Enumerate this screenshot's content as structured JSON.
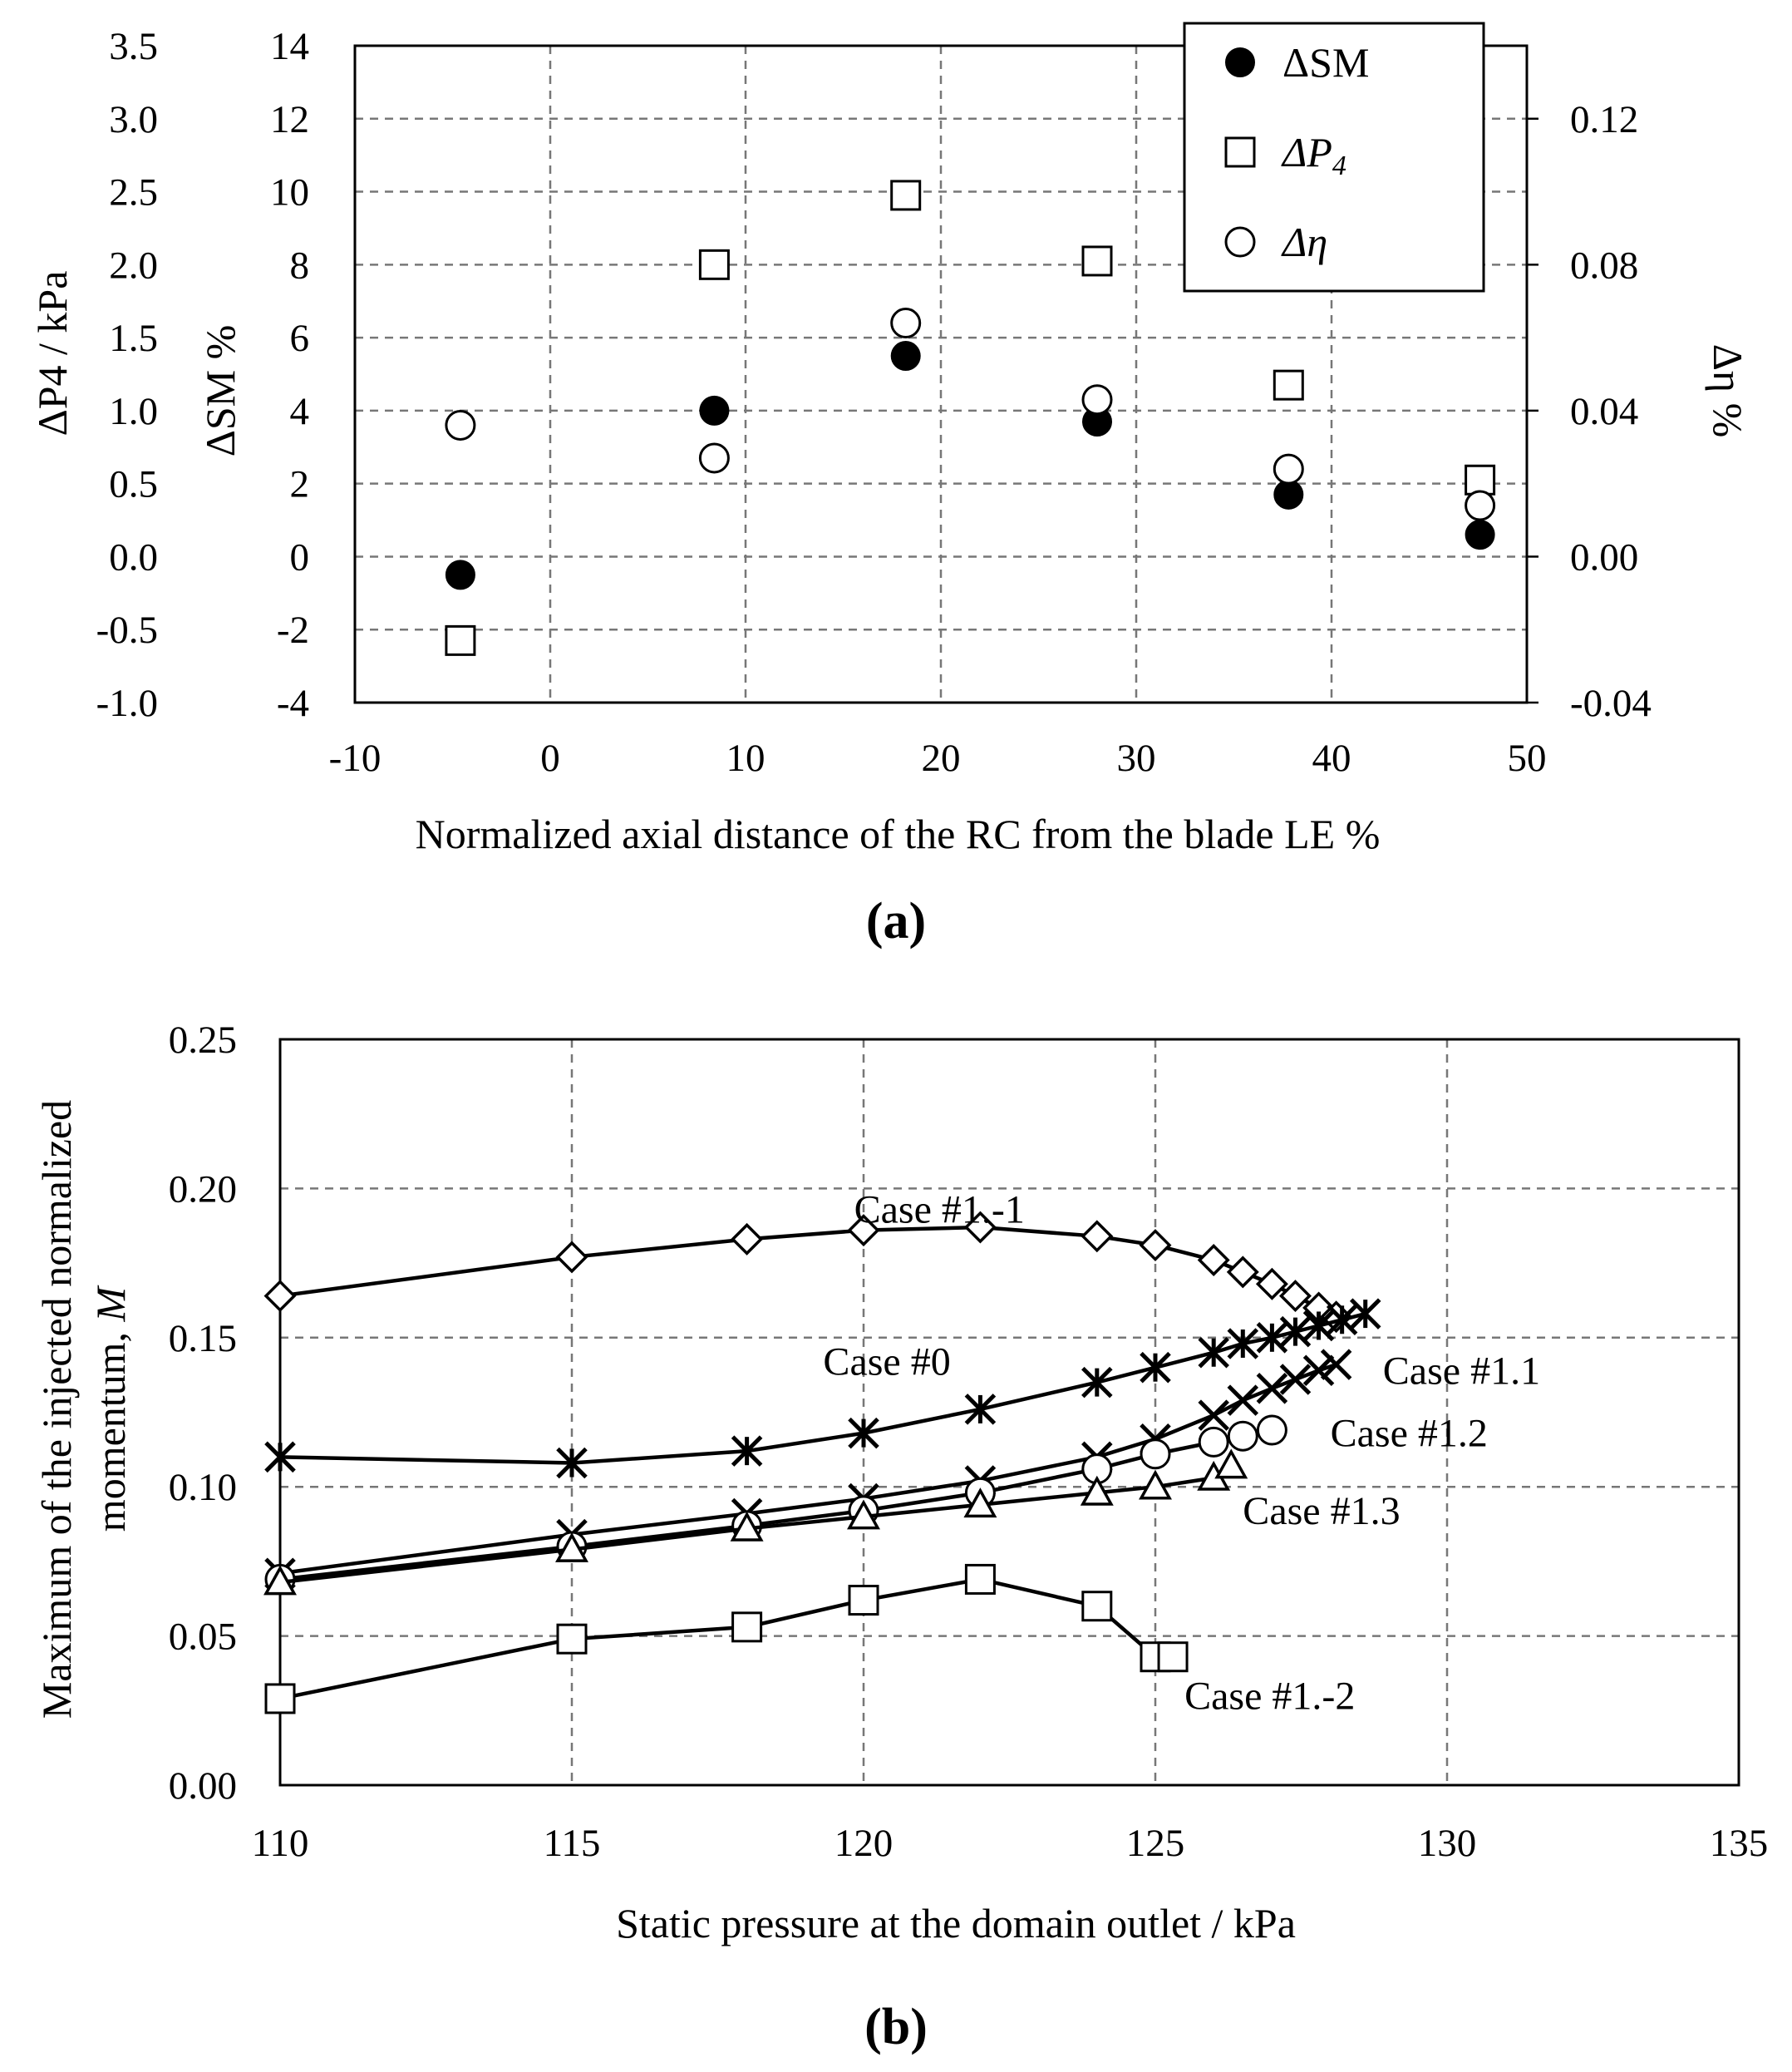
{
  "chart_data": [
    {
      "type": "scatter",
      "panel_label": "(a)",
      "xlabel": "Normalized axial distance of the RC from the blade LE   %",
      "ylabel_left_outer": "ΔP4   /  kPa",
      "ylabel_left_inner": "ΔSM   %",
      "ylabel_right": "Δη   %",
      "xlim": [
        -10,
        50
      ],
      "x_ticks": [
        "-10",
        "0",
        "10",
        "20",
        "30",
        "40",
        "50"
      ],
      "ylim_sm": [
        -4,
        14
      ],
      "y_ticks_sm": [
        "-4",
        "-2",
        "0",
        "2",
        "4",
        "6",
        "8",
        "10",
        "12",
        "14"
      ],
      "ylim_p4": [
        -1.0,
        3.5
      ],
      "y_ticks_p4": [
        "-1.0",
        "-0.5",
        "0.0",
        "0.5",
        "1.0",
        "1.5",
        "2.0",
        "2.5",
        "3.0",
        "3.5"
      ],
      "ylim_eta": [
        -0.04,
        0.14
      ],
      "y_ticks_eta": [
        "-0.04",
        "0.00",
        "0.04",
        "0.08",
        "0.12"
      ],
      "legend_position": "top-right",
      "series": [
        {
          "name": "ΔSM",
          "marker": "filled-circle",
          "axis": "sm",
          "x": [
            -4.6,
            8.4,
            18.2,
            28,
            37.8,
            47.6
          ],
          "y": [
            -0.5,
            4.0,
            5.5,
            3.7,
            1.7,
            0.6
          ]
        },
        {
          "name": "ΔP4",
          "marker": "square",
          "axis": "sm",
          "x": [
            -4.6,
            8.4,
            18.2,
            28,
            37.8,
            47.6
          ],
          "y": [
            -2.3,
            8.0,
            9.9,
            8.1,
            4.7,
            2.1
          ]
        },
        {
          "name": "Δη",
          "marker": "open-circle",
          "axis": "sm",
          "x": [
            -4.6,
            8.4,
            18.2,
            28,
            37.8,
            47.6
          ],
          "y": [
            3.6,
            2.7,
            6.4,
            4.3,
            2.4,
            1.4
          ]
        }
      ],
      "legend": [
        {
          "symbol": "filled-circle",
          "label_main": "ΔSM",
          "label_sub": ""
        },
        {
          "symbol": "square",
          "label_main": "ΔP",
          "label_sub": "4"
        },
        {
          "symbol": "open-circle",
          "label_main": "Δη",
          "label_sub": ""
        }
      ]
    },
    {
      "type": "line",
      "panel_label": "(b)",
      "xlabel": "Static pressure at the domain outlet   /   kPa",
      "ylabel_line1": "Maximum of the injected normalized",
      "ylabel_line2": "momentum, M",
      "xlim": [
        110,
        135
      ],
      "x_ticks": [
        "110",
        "115",
        "120",
        "125",
        "130",
        "135"
      ],
      "ylim": [
        0.0,
        0.25
      ],
      "y_ticks": [
        "0.00",
        "0.05",
        "0.10",
        "0.15",
        "0.20",
        "0.25"
      ],
      "series": [
        {
          "name": "Case #1.-1",
          "marker": "diamond",
          "x": [
            110,
            115,
            118,
            120,
            122,
            124,
            125,
            126,
            126.5,
            127,
            127.4,
            127.8,
            128.1
          ],
          "y": [
            0.164,
            0.177,
            0.183,
            0.186,
            0.187,
            0.184,
            0.181,
            0.176,
            0.172,
            0.168,
            0.164,
            0.16,
            0.157
          ]
        },
        {
          "name": "Case #0",
          "marker": "star",
          "x": [
            110,
            115,
            118,
            120,
            122,
            124,
            125,
            126,
            126.5,
            127,
            127.4,
            127.8,
            128.2,
            128.6
          ],
          "y": [
            0.11,
            0.108,
            0.112,
            0.118,
            0.126,
            0.135,
            0.14,
            0.145,
            0.148,
            0.15,
            0.152,
            0.154,
            0.156,
            0.158
          ]
        },
        {
          "name": "Case #1.1",
          "marker": "x",
          "x": [
            110,
            115,
            118,
            120,
            122,
            124,
            125,
            126,
            126.5,
            127,
            127.4,
            127.8,
            128.1
          ],
          "y": [
            0.071,
            0.084,
            0.091,
            0.096,
            0.102,
            0.11,
            0.116,
            0.124,
            0.129,
            0.133,
            0.136,
            0.139,
            0.141
          ]
        },
        {
          "name": "Case #1.2",
          "marker": "open-circle",
          "x": [
            110,
            115,
            118,
            120,
            122,
            124,
            125,
            126,
            126.5,
            127
          ],
          "y": [
            0.069,
            0.08,
            0.087,
            0.092,
            0.098,
            0.106,
            0.111,
            0.115,
            0.117,
            0.119
          ]
        },
        {
          "name": "Case #1.3",
          "marker": "triangle",
          "x": [
            110,
            115,
            118,
            120,
            122,
            124,
            125,
            126,
            126.3
          ],
          "y": [
            0.068,
            0.079,
            0.086,
            0.09,
            0.094,
            0.098,
            0.1,
            0.103,
            0.107
          ]
        },
        {
          "name": "Case #1.-2",
          "marker": "square",
          "x": [
            110,
            115,
            118,
            120,
            122,
            124,
            125,
            125.3
          ],
          "y": [
            0.029,
            0.049,
            0.053,
            0.062,
            0.069,
            0.06,
            0.043,
            0.043
          ]
        }
      ],
      "annotations": [
        {
          "text": "Case #1.-1",
          "x": 121.3,
          "y": 0.193
        },
        {
          "text": "Case #0",
          "x": 120.4,
          "y": 0.142
        },
        {
          "text": "Case #1.1",
          "x": 128.9,
          "y": 0.139
        },
        {
          "text": "Case #1.2",
          "x": 128.0,
          "y": 0.118
        },
        {
          "text": "Case #1.3",
          "x": 126.5,
          "y": 0.092
        },
        {
          "text": "Case #1.-2",
          "x": 125.5,
          "y": 0.03
        }
      ]
    }
  ]
}
